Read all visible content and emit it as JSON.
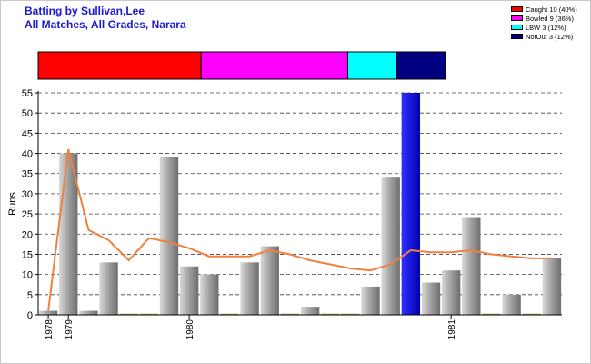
{
  "title": "Batting by Sullivan,Lee",
  "subtitle": "All Matches, All Grades, Narara",
  "legend": [
    {
      "label": "Caught 10 (40%)",
      "color": "#ff0000"
    },
    {
      "label": "Bowled 9 (36%)",
      "color": "#ff00ff"
    },
    {
      "label": "LBW 3 (12%)",
      "color": "#00ffff"
    },
    {
      "label": "NotOut 3 (12%)",
      "color": "#000080"
    }
  ],
  "dismissal_bar": {
    "segments": [
      {
        "name": "Caught",
        "fraction": 0.4,
        "color": "#ff0000"
      },
      {
        "name": "Bowled",
        "fraction": 0.36,
        "color": "#ff00ff"
      },
      {
        "name": "LBW",
        "fraction": 0.12,
        "color": "#00ffff"
      },
      {
        "name": "NotOut",
        "fraction": 0.12,
        "color": "#000080"
      }
    ]
  },
  "chart_data": {
    "type": "bar",
    "ylabel": "Runs",
    "ylim": [
      0,
      55
    ],
    "yticks": [
      0,
      5,
      10,
      15,
      20,
      25,
      30,
      35,
      40,
      45,
      50,
      55
    ],
    "grid": "horizontal dashed",
    "x_tick_labels": [
      {
        "label": "1978",
        "at_bar": 0
      },
      {
        "label": "1979",
        "at_bar": 1
      },
      {
        "label": "1980",
        "at_bar": 7
      },
      {
        "label": "1981",
        "at_bar": 20
      }
    ],
    "bar_colors": {
      "default": "#a0a0a0",
      "highlight": "#0000cc"
    },
    "series": [
      {
        "name": "Runs",
        "type": "bar",
        "values": [
          1,
          40,
          1,
          13,
          0,
          0,
          39,
          12,
          10,
          0,
          13,
          17,
          0,
          2,
          0,
          0,
          7,
          34,
          55,
          8,
          11,
          24,
          0,
          5,
          0,
          14
        ],
        "highlight_index": 18
      },
      {
        "name": "Average",
        "type": "line",
        "color": "#f08040",
        "values": [
          1,
          41,
          21,
          18.5,
          13.5,
          19,
          18,
          16.5,
          14.5,
          14.5,
          14.5,
          16,
          15,
          13.5,
          12.5,
          11.5,
          11,
          12.5,
          16,
          15.5,
          15.5,
          16,
          15,
          14.5,
          14,
          14
        ]
      }
    ]
  }
}
